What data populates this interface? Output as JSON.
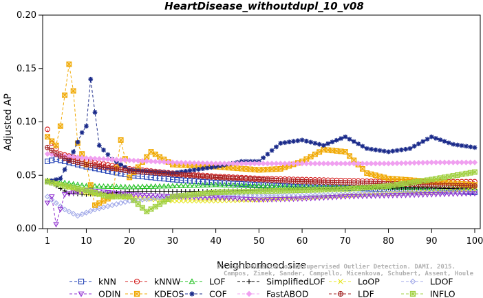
{
  "chart_data": {
    "type": "line",
    "title": "HeartDisease_withoutdupl_10_v08",
    "xlabel": "Neighborhood size",
    "ylabel": "Adjusted AP",
    "xlim": [
      1,
      100
    ],
    "ylim": [
      0,
      0.2
    ],
    "x_ticks": [
      1,
      10,
      20,
      30,
      40,
      50,
      60,
      70,
      80,
      90,
      100
    ],
    "y_ticks": [
      0.0,
      0.05,
      0.1,
      0.15,
      0.2
    ],
    "x_tick_labels": [
      "1",
      "10",
      "20",
      "30",
      "40",
      "50",
      "60",
      "70",
      "80",
      "90",
      "100"
    ],
    "y_tick_labels": [
      "0.00",
      "0.05",
      "0.10",
      "0.15",
      "0.20"
    ],
    "grid": false,
    "legend_position": "bottom",
    "watermark": [
      "Campos, Zimek, Sander, Campello, Micenkova, Schubert, Assent, Houle",
      "On the Evaluation of Unsupervised Outlier Detection. DAMI, 2015."
    ],
    "series": [
      {
        "name": "kNN",
        "color": "#1f3fb5",
        "marker": "square",
        "keypoints": [
          [
            1,
            0.063
          ],
          [
            3,
            0.065
          ],
          [
            6,
            0.062
          ],
          [
            10,
            0.058
          ],
          [
            15,
            0.054
          ],
          [
            20,
            0.05
          ],
          [
            30,
            0.046
          ],
          [
            40,
            0.043
          ],
          [
            50,
            0.041
          ],
          [
            60,
            0.039
          ],
          [
            70,
            0.038
          ],
          [
            80,
            0.037
          ],
          [
            90,
            0.036
          ],
          [
            100,
            0.034
          ]
        ]
      },
      {
        "name": "kNNW",
        "color": "#d42020",
        "marker": "circle",
        "keypoints": [
          [
            1,
            0.093
          ],
          [
            2,
            0.08
          ],
          [
            4,
            0.07
          ],
          [
            8,
            0.066
          ],
          [
            12,
            0.062
          ],
          [
            20,
            0.056
          ],
          [
            30,
            0.052
          ],
          [
            40,
            0.049
          ],
          [
            50,
            0.047
          ],
          [
            60,
            0.046
          ],
          [
            70,
            0.045
          ],
          [
            80,
            0.044
          ],
          [
            90,
            0.044
          ],
          [
            100,
            0.044
          ]
        ]
      },
      {
        "name": "LOF",
        "color": "#20c020",
        "marker": "triangle",
        "keypoints": [
          [
            1,
            0.045
          ],
          [
            5,
            0.043
          ],
          [
            10,
            0.04
          ],
          [
            20,
            0.039
          ],
          [
            30,
            0.04
          ],
          [
            40,
            0.041
          ],
          [
            50,
            0.04
          ],
          [
            60,
            0.039
          ],
          [
            70,
            0.039
          ],
          [
            80,
            0.039
          ],
          [
            90,
            0.038
          ],
          [
            100,
            0.038
          ]
        ]
      },
      {
        "name": "SimplifiedLOF",
        "color": "#000000",
        "marker": "plus",
        "keypoints": [
          [
            1,
            0.045
          ],
          [
            3,
            0.04
          ],
          [
            6,
            0.033
          ],
          [
            10,
            0.032
          ],
          [
            15,
            0.033
          ],
          [
            20,
            0.035
          ],
          [
            30,
            0.035
          ],
          [
            40,
            0.035
          ],
          [
            50,
            0.036
          ],
          [
            60,
            0.037
          ],
          [
            70,
            0.038
          ],
          [
            80,
            0.038
          ],
          [
            90,
            0.038
          ],
          [
            100,
            0.037
          ]
        ]
      },
      {
        "name": "LoOP",
        "color": "#e6e620",
        "marker": "x",
        "keypoints": [
          [
            1,
            0.045
          ],
          [
            5,
            0.04
          ],
          [
            10,
            0.033
          ],
          [
            20,
            0.029
          ],
          [
            30,
            0.026
          ],
          [
            40,
            0.026
          ],
          [
            50,
            0.027
          ],
          [
            60,
            0.029
          ],
          [
            70,
            0.031
          ],
          [
            80,
            0.033
          ],
          [
            90,
            0.034
          ],
          [
            100,
            0.036
          ]
        ]
      },
      {
        "name": "LDOF",
        "color": "#a0a8e8",
        "marker": "diamond",
        "keypoints": [
          [
            1,
            0.03
          ],
          [
            5,
            0.018
          ],
          [
            8,
            0.012
          ],
          [
            12,
            0.018
          ],
          [
            20,
            0.026
          ],
          [
            30,
            0.03
          ],
          [
            40,
            0.031
          ],
          [
            50,
            0.031
          ],
          [
            60,
            0.031
          ],
          [
            70,
            0.032
          ],
          [
            80,
            0.033
          ],
          [
            90,
            0.034
          ],
          [
            100,
            0.035
          ]
        ]
      },
      {
        "name": "ODIN",
        "color": "#9030d0",
        "marker": "triangle-down",
        "keypoints": [
          [
            1,
            0.024
          ],
          [
            2,
            0.03
          ],
          [
            3,
            0.004
          ],
          [
            5,
            0.032
          ],
          [
            10,
            0.036
          ],
          [
            20,
            0.032
          ],
          [
            30,
            0.03
          ],
          [
            40,
            0.029
          ],
          [
            50,
            0.027
          ],
          [
            60,
            0.028
          ],
          [
            70,
            0.03
          ],
          [
            80,
            0.031
          ],
          [
            90,
            0.032
          ],
          [
            100,
            0.033
          ]
        ]
      },
      {
        "name": "KDEOS",
        "color": "#f0a800",
        "marker": "square-x",
        "keypoints": [
          [
            1,
            0.086
          ],
          [
            3,
            0.078
          ],
          [
            4,
            0.096
          ],
          [
            6,
            0.154
          ],
          [
            7,
            0.129
          ],
          [
            8,
            0.08
          ],
          [
            10,
            0.06
          ],
          [
            12,
            0.022
          ],
          [
            16,
            0.03
          ],
          [
            18,
            0.083
          ],
          [
            20,
            0.048
          ],
          [
            25,
            0.072
          ],
          [
            30,
            0.06
          ],
          [
            40,
            0.058
          ],
          [
            50,
            0.055
          ],
          [
            55,
            0.056
          ],
          [
            60,
            0.063
          ],
          [
            65,
            0.074
          ],
          [
            70,
            0.072
          ],
          [
            75,
            0.052
          ],
          [
            80,
            0.047
          ],
          [
            90,
            0.044
          ],
          [
            100,
            0.041
          ]
        ]
      },
      {
        "name": "COF",
        "color": "#1a2a8a",
        "marker": "asterisk",
        "keypoints": [
          [
            1,
            0.044
          ],
          [
            4,
            0.047
          ],
          [
            7,
            0.072
          ],
          [
            9,
            0.09
          ],
          [
            10,
            0.096
          ],
          [
            11,
            0.14
          ],
          [
            13,
            0.078
          ],
          [
            16,
            0.065
          ],
          [
            20,
            0.055
          ],
          [
            30,
            0.052
          ],
          [
            40,
            0.058
          ],
          [
            46,
            0.063
          ],
          [
            50,
            0.063
          ],
          [
            55,
            0.08
          ],
          [
            60,
            0.083
          ],
          [
            65,
            0.078
          ],
          [
            70,
            0.086
          ],
          [
            75,
            0.075
          ],
          [
            80,
            0.072
          ],
          [
            85,
            0.075
          ],
          [
            90,
            0.086
          ],
          [
            95,
            0.079
          ],
          [
            100,
            0.076
          ]
        ]
      },
      {
        "name": "FastABOD",
        "color": "#f0a0f0",
        "marker": "diamond-filled",
        "keypoints": [
          [
            1,
            0.07
          ],
          [
            5,
            0.068
          ],
          [
            10,
            0.066
          ],
          [
            20,
            0.064
          ],
          [
            30,
            0.062
          ],
          [
            40,
            0.061
          ],
          [
            50,
            0.061
          ],
          [
            60,
            0.061
          ],
          [
            70,
            0.061
          ],
          [
            80,
            0.061
          ],
          [
            90,
            0.062
          ],
          [
            100,
            0.062
          ]
        ]
      },
      {
        "name": "LDF",
        "color": "#a02020",
        "marker": "circle-plus",
        "keypoints": [
          [
            1,
            0.076
          ],
          [
            3,
            0.07
          ],
          [
            6,
            0.064
          ],
          [
            10,
            0.06
          ],
          [
            20,
            0.054
          ],
          [
            30,
            0.051
          ],
          [
            40,
            0.048
          ],
          [
            50,
            0.046
          ],
          [
            60,
            0.044
          ],
          [
            70,
            0.043
          ],
          [
            80,
            0.042
          ],
          [
            90,
            0.041
          ],
          [
            100,
            0.04
          ]
        ]
      },
      {
        "name": "INFLO",
        "color": "#a0d040",
        "marker": "star",
        "keypoints": [
          [
            1,
            0.044
          ],
          [
            5,
            0.04
          ],
          [
            10,
            0.036
          ],
          [
            15,
            0.03
          ],
          [
            20,
            0.03
          ],
          [
            24,
            0.016
          ],
          [
            30,
            0.03
          ],
          [
            40,
            0.034
          ],
          [
            50,
            0.035
          ],
          [
            60,
            0.036
          ],
          [
            70,
            0.037
          ],
          [
            80,
            0.04
          ],
          [
            90,
            0.046
          ],
          [
            100,
            0.053
          ]
        ]
      }
    ]
  }
}
